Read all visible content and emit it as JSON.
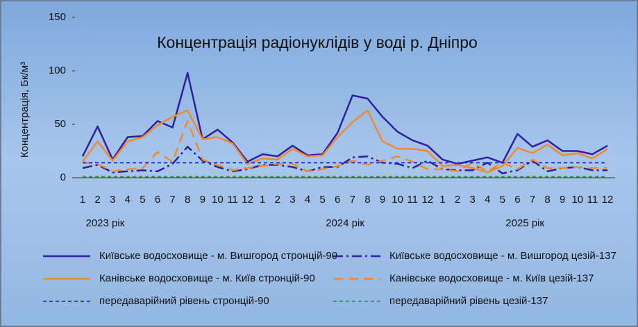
{
  "chart_data": {
    "type": "line",
    "title": "Концентрація радіонуклідів у воді р. Дніпро",
    "y_label": "Концентрація, Бк/м³",
    "categories": [
      "1",
      "2",
      "3",
      "4",
      "5",
      "6",
      "7",
      "8",
      "9",
      "10",
      "11",
      "12",
      "1",
      "2",
      "3",
      "4",
      "5",
      "6",
      "7",
      "8",
      "9",
      "10",
      "11",
      "12",
      "1",
      "2",
      "3",
      "4",
      "5",
      "6",
      "7",
      "8",
      "9",
      "10",
      "11",
      "12"
    ],
    "year_labels": [
      "2023 рік",
      "2024 рік",
      "2025 рік"
    ],
    "ylim": [
      0,
      150
    ],
    "yticks": [
      0,
      50,
      100,
      150
    ],
    "grid": false,
    "series": [
      {
        "name": "Київське водосховище - м. Вишгород стронцій-90",
        "color": "#2e1f9e",
        "dash": "solid",
        "values": [
          20,
          48,
          17,
          38,
          39,
          53,
          47,
          98,
          36,
          45,
          33,
          15,
          22,
          20,
          30,
          21,
          22,
          42,
          77,
          74,
          57,
          43,
          35,
          30,
          17,
          13,
          16,
          19,
          14,
          41,
          29,
          35,
          25,
          25,
          22,
          30
        ]
      },
      {
        "name": "Київське водосховище - м. Вишгород цезій-137",
        "color": "#2e1f9e",
        "dash": "dash-dot",
        "values": [
          9,
          12,
          5,
          6,
          7,
          6,
          13,
          29,
          16,
          10,
          6,
          8,
          12,
          12,
          10,
          6,
          10,
          10,
          19,
          20,
          14,
          13,
          9,
          16,
          8,
          7,
          7,
          14,
          4,
          7,
          16,
          6,
          9,
          10,
          7,
          7
        ]
      },
      {
        "name": "Канівське водосховище - м. Київ стронцій-90",
        "color": "#f08a2c",
        "dash": "solid",
        "values": [
          15,
          34,
          16,
          34,
          38,
          49,
          57,
          63,
          36,
          38,
          32,
          13,
          18,
          17,
          27,
          20,
          21,
          38,
          52,
          63,
          34,
          27,
          27,
          25,
          11,
          12,
          9,
          5,
          11,
          28,
          23,
          31,
          21,
          23,
          18,
          27
        ]
      },
      {
        "name": "Канівське водосховище - м. Київ цезій-137",
        "color": "#f08a2c",
        "dash": "dashed",
        "values": [
          14,
          13,
          6,
          8,
          9,
          24,
          15,
          53,
          17,
          12,
          7,
          9,
          11,
          13,
          13,
          6,
          8,
          11,
          16,
          12,
          16,
          20,
          15,
          8,
          8,
          6,
          14,
          6,
          14,
          8,
          17,
          9,
          9,
          10,
          9,
          9
        ]
      },
      {
        "name": "передаварійний рівень стронцій-90",
        "color": "#1f2fd0",
        "dash": "dotted",
        "values": [
          14,
          14,
          14,
          14,
          14,
          14,
          14,
          14,
          14,
          14,
          14,
          14,
          14,
          14,
          14,
          14,
          14,
          14,
          14,
          14,
          14,
          14,
          14,
          14,
          14,
          14,
          14,
          14,
          14,
          14,
          14,
          14,
          14,
          14,
          14,
          14
        ]
      },
      {
        "name": "передаварійний рівень цезій-137",
        "color": "#1e9a2e",
        "dash": "dotted",
        "values": [
          1,
          1,
          1,
          1,
          1,
          1,
          1,
          1,
          1,
          1,
          1,
          1,
          1,
          1,
          1,
          1,
          1,
          1,
          1,
          1,
          1,
          1,
          1,
          1,
          1,
          1,
          1,
          1,
          1,
          1,
          1,
          1,
          1,
          1,
          1,
          1
        ]
      }
    ]
  }
}
